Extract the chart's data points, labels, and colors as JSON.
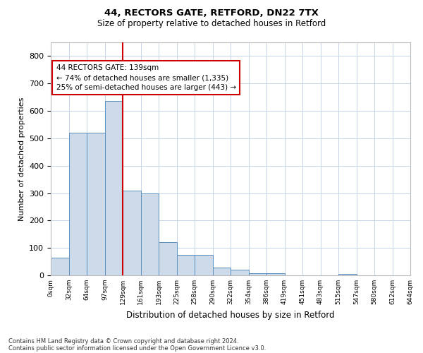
{
  "title1": "44, RECTORS GATE, RETFORD, DN22 7TX",
  "title2": "Size of property relative to detached houses in Retford",
  "xlabel": "Distribution of detached houses by size in Retford",
  "ylabel": "Number of detached properties",
  "footnote1": "Contains HM Land Registry data © Crown copyright and database right 2024.",
  "footnote2": "Contains public sector information licensed under the Open Government Licence v3.0.",
  "bar_color": "#ccdaea",
  "bar_edge_color": "#5a8fbf",
  "grid_color": "#c5d5e8",
  "background_color": "#ffffff",
  "vline_color": "#cc0000",
  "vline_x": 4.0,
  "annotation_text": "44 RECTORS GATE: 139sqm\n← 74% of detached houses are smaller (1,335)\n25% of semi-detached houses are larger (443) →",
  "xlim": [
    0,
    20
  ],
  "ylim": [
    0,
    850
  ],
  "yticks": [
    0,
    100,
    200,
    300,
    400,
    500,
    600,
    700,
    800
  ],
  "xtick_labels": [
    "0sqm",
    "32sqm",
    "64sqm",
    "97sqm",
    "129sqm",
    "161sqm",
    "193sqm",
    "225sqm",
    "258sqm",
    "290sqm",
    "322sqm",
    "354sqm",
    "386sqm",
    "419sqm",
    "451sqm",
    "483sqm",
    "515sqm",
    "547sqm",
    "580sqm",
    "612sqm",
    "644sqm"
  ],
  "bar_heights": [
    65,
    520,
    520,
    635,
    310,
    300,
    120,
    75,
    75,
    28,
    20,
    8,
    8,
    0,
    0,
    0,
    5,
    0,
    0,
    0
  ],
  "bar_left_edges": [
    0,
    1,
    2,
    3,
    4,
    5,
    6,
    7,
    8,
    9,
    10,
    11,
    12,
    13,
    14,
    15,
    16,
    17,
    18,
    19
  ]
}
